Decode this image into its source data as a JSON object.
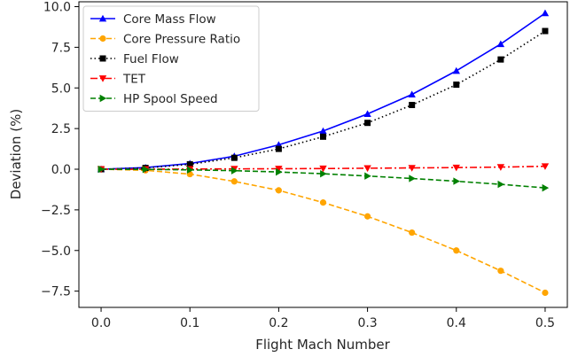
{
  "chart_data": {
    "type": "line",
    "title": "",
    "xlabel": "Flight Mach Number",
    "ylabel": "Deviation (%)",
    "xlim": [
      -0.025,
      0.525
    ],
    "ylim": [
      -8.5,
      10.3
    ],
    "x_ticks": [
      0.0,
      0.1,
      0.2,
      0.3,
      0.4,
      0.5
    ],
    "x_tick_labels": [
      "0.0",
      "0.1",
      "0.2",
      "0.3",
      "0.4",
      "0.5"
    ],
    "y_ticks": [
      -7.5,
      -5.0,
      -2.5,
      0.0,
      2.5,
      5.0,
      7.5,
      10.0
    ],
    "y_tick_labels": [
      "−7.5",
      "−5.0",
      "−2.5",
      "0.0",
      "2.5",
      "5.0",
      "7.5",
      "10.0"
    ],
    "grid": false,
    "legend_position": "top-left",
    "x": [
      0.0,
      0.05,
      0.1,
      0.15,
      0.2,
      0.25,
      0.3,
      0.35,
      0.4,
      0.45,
      0.5
    ],
    "series": [
      {
        "name": "Core Mass Flow",
        "color": "#0000ff",
        "linestyle": "solid",
        "marker": "triangle-up",
        "values": [
          0.0,
          0.1,
          0.35,
          0.8,
          1.5,
          2.35,
          3.4,
          4.6,
          6.05,
          7.7,
          9.6
        ]
      },
      {
        "name": "Core Pressure Ratio",
        "color": "#ffa500",
        "linestyle": "dashed",
        "marker": "circle",
        "values": [
          0.0,
          -0.07,
          -0.3,
          -0.75,
          -1.3,
          -2.05,
          -2.9,
          -3.9,
          -5.0,
          -6.25,
          -7.6
        ]
      },
      {
        "name": "Fuel Flow",
        "color": "#000000",
        "linestyle": "dotted",
        "marker": "square",
        "values": [
          0.0,
          0.08,
          0.3,
          0.7,
          1.25,
          2.0,
          2.85,
          3.95,
          5.2,
          6.75,
          8.5
        ]
      },
      {
        "name": "TET",
        "color": "#ff0000",
        "linestyle": "dashdot",
        "marker": "triangle-down",
        "values": [
          0.0,
          0.0,
          0.01,
          0.02,
          0.03,
          0.04,
          0.06,
          0.08,
          0.1,
          0.13,
          0.18
        ]
      },
      {
        "name": "HP Spool Speed",
        "color": "#008000",
        "linestyle": "dashed",
        "marker": "triangle-right",
        "values": [
          0.0,
          -0.01,
          -0.04,
          -0.09,
          -0.17,
          -0.28,
          -0.42,
          -0.57,
          -0.74,
          -0.93,
          -1.15
        ]
      }
    ]
  }
}
